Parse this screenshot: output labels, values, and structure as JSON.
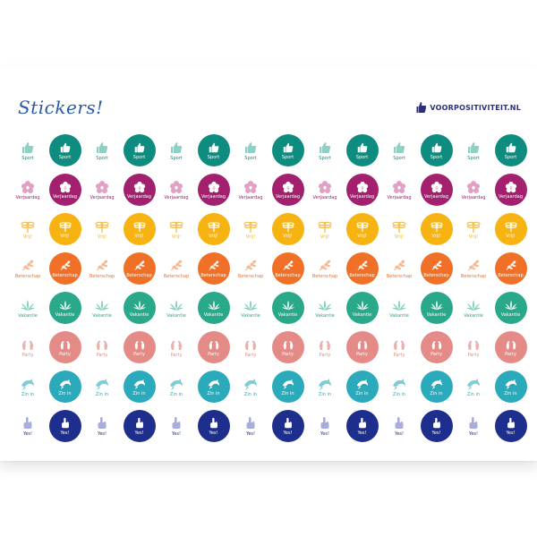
{
  "header": {
    "title": "Stickers!",
    "brand": "VOORPOSITIVITEIT.NL",
    "brand_color": "#2c2f7a",
    "title_color": "#2b5aa6"
  },
  "sticker_rows": [
    {
      "label": "Sport",
      "icon": "thumbs-up-icon",
      "color": "#0f8c80",
      "light": "#8fd0c4"
    },
    {
      "label": "Verjaardag",
      "icon": "flower-icon",
      "color": "#a3206f",
      "light": "#e2a0c4"
    },
    {
      "label": "Vrij!",
      "icon": "dragonfly-icon",
      "color": "#f6b311",
      "light": "#f3c25a"
    },
    {
      "label": "Beterschap",
      "icon": "olive-branch-icon",
      "color": "#f07027",
      "light": "#f6b48a"
    },
    {
      "label": "Vakantie",
      "icon": "palm-leaves-icon",
      "color": "#2aa88a",
      "light": "#7fcfba"
    },
    {
      "label": "Party",
      "icon": "parrots-icon",
      "color": "#e48b87",
      "light": "#eab0ac"
    },
    {
      "label": "Zin in",
      "icon": "dolphin-icon",
      "color": "#2aaabb",
      "light": "#7fcbd6"
    },
    {
      "label": "Yes!",
      "icon": "hand-icon",
      "color": "#1e2e8c",
      "light": "#a9addc"
    }
  ]
}
